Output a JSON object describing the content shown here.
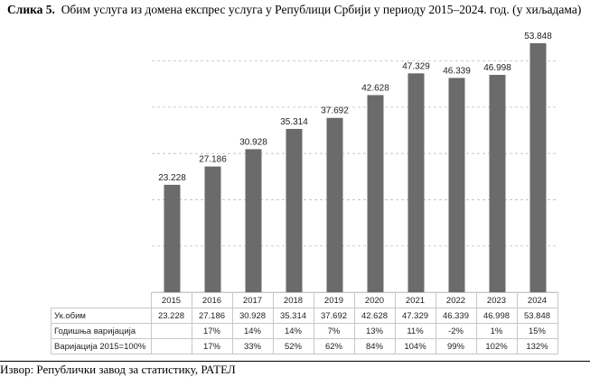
{
  "caption": {
    "prefix": "Слика 5.",
    "text": "Обим услуга из домена експрес услуга у Републици Србији у периоду 2015–2024. год. (у хиљадама)"
  },
  "chart_data": {
    "type": "bar",
    "categories": [
      "2015",
      "2016",
      "2017",
      "2018",
      "2019",
      "2020",
      "2021",
      "2022",
      "2023",
      "2024"
    ],
    "values": [
      23.228,
      27.186,
      30.928,
      35.314,
      37.692,
      42.628,
      47.329,
      46.339,
      46.998,
      53.848
    ],
    "value_labels": [
      "23.228",
      "27.186",
      "30.928",
      "35.314",
      "37.692",
      "42.628",
      "47.329",
      "46.339",
      "46.998",
      "53.848"
    ],
    "ylim": [
      0,
      55
    ],
    "grid": true,
    "bar_color": "#6b6b6b",
    "grid_color": "#bfbfbf"
  },
  "table": {
    "rows": [
      {
        "label": "Ук.обим",
        "values": [
          "23.228",
          "27.186",
          "30.928",
          "35.314",
          "37.692",
          "42.628",
          "47.329",
          "46.339",
          "46.998",
          "53.848"
        ]
      },
      {
        "label": "Годишња варијација",
        "values": [
          "",
          "17%",
          "14%",
          "14%",
          "7%",
          "13%",
          "11%",
          "-2%",
          "1%",
          "15%"
        ]
      },
      {
        "label": "Варијација 2015=100%",
        "values": [
          "",
          "17%",
          "33%",
          "52%",
          "62%",
          "84%",
          "104%",
          "99%",
          "102%",
          "132%"
        ]
      }
    ]
  },
  "source": "Извор: Републички завод за статистику, РАТЕЛ"
}
